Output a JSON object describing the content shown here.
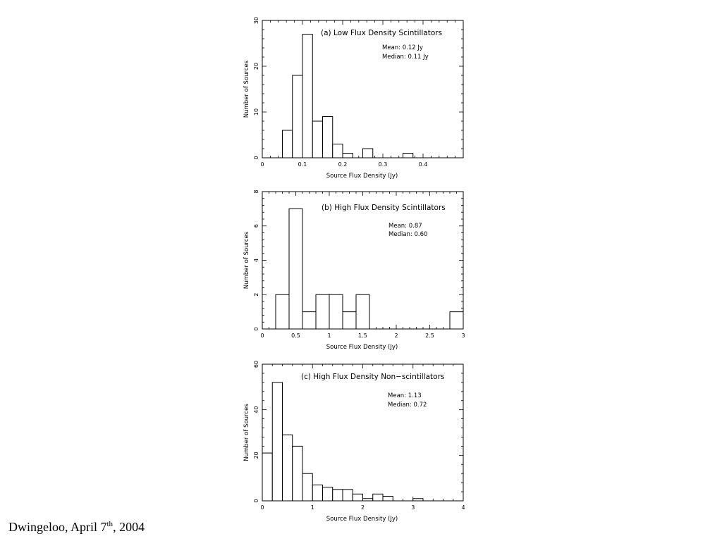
{
  "footer": {
    "text_before": "Dwingeloo, April 7",
    "superscript": "th",
    "text_after": ", 2004"
  },
  "chart_data": [
    {
      "type": "bar",
      "title": "(a) Low Flux Density Scintillators",
      "annotations": [
        "Mean: 0.12 Jy",
        "Median: 0.11 Jy"
      ],
      "xlabel": "Source Flux Density (Jy)",
      "ylabel": "Number of Sources",
      "xlim": [
        0,
        0.5
      ],
      "ylim": [
        0,
        30
      ],
      "xticks": [
        0,
        0.1,
        0.2,
        0.3,
        0.4
      ],
      "xtick_labels": [
        "0",
        "0.1",
        "0.2",
        "0.3",
        "0.4"
      ],
      "yticks": [
        0,
        10,
        20,
        30
      ],
      "ytick_labels": [
        "0",
        "10",
        "20",
        "30"
      ],
      "bin_width": 0.025,
      "bins": [
        {
          "x0": 0.05,
          "value": 6
        },
        {
          "x0": 0.075,
          "value": 18
        },
        {
          "x0": 0.1,
          "value": 27
        },
        {
          "x0": 0.125,
          "value": 8
        },
        {
          "x0": 0.15,
          "value": 9
        },
        {
          "x0": 0.175,
          "value": 3
        },
        {
          "x0": 0.2,
          "value": 1
        },
        {
          "x0": 0.25,
          "value": 2
        },
        {
          "x0": 0.35,
          "value": 1
        }
      ]
    },
    {
      "type": "bar",
      "title": "(b) High Flux Density Scintillators",
      "annotations": [
        "Mean: 0.87",
        "Median: 0.60"
      ],
      "xlabel": "Source Flux Density (Jy)",
      "ylabel": "Number of Sources",
      "xlim": [
        0,
        3
      ],
      "ylim": [
        0,
        8
      ],
      "xticks": [
        0,
        0.5,
        1,
        1.5,
        2,
        2.5,
        3
      ],
      "xtick_labels": [
        "0",
        "0.5",
        "1",
        "1.5",
        "2",
        "2.5",
        "3"
      ],
      "yticks": [
        0,
        2,
        4,
        6,
        8
      ],
      "ytick_labels": [
        "0",
        "2",
        "4",
        "6",
        "8"
      ],
      "bin_width": 0.2,
      "bins": [
        {
          "x0": 0.2,
          "value": 2
        },
        {
          "x0": 0.4,
          "value": 7
        },
        {
          "x0": 0.6,
          "value": 1
        },
        {
          "x0": 0.8,
          "value": 2
        },
        {
          "x0": 1.0,
          "value": 2
        },
        {
          "x0": 1.2,
          "value": 1
        },
        {
          "x0": 1.4,
          "value": 2
        },
        {
          "x0": 2.8,
          "value": 1
        }
      ]
    },
    {
      "type": "bar",
      "title": "(c) High Flux Density Non−scintillators",
      "annotations": [
        "Mean: 1.13",
        "Median: 0.72"
      ],
      "xlabel": "Source Flux Density (Jy)",
      "ylabel": "Number of Sources",
      "xlim": [
        0,
        4
      ],
      "ylim": [
        0,
        60
      ],
      "xticks": [
        0,
        1,
        2,
        3,
        4
      ],
      "xtick_labels": [
        "0",
        "1",
        "2",
        "3",
        "4"
      ],
      "yticks": [
        0,
        20,
        40,
        60
      ],
      "ytick_labels": [
        "0",
        "20",
        "40",
        "60"
      ],
      "bin_width": 0.2,
      "bins": [
        {
          "x0": 0.0,
          "value": 21
        },
        {
          "x0": 0.2,
          "value": 52
        },
        {
          "x0": 0.4,
          "value": 29
        },
        {
          "x0": 0.6,
          "value": 24
        },
        {
          "x0": 0.8,
          "value": 12
        },
        {
          "x0": 1.0,
          "value": 7
        },
        {
          "x0": 1.2,
          "value": 6
        },
        {
          "x0": 1.4,
          "value": 5
        },
        {
          "x0": 1.6,
          "value": 5
        },
        {
          "x0": 1.8,
          "value": 3
        },
        {
          "x0": 2.0,
          "value": 1
        },
        {
          "x0": 2.2,
          "value": 3
        },
        {
          "x0": 2.4,
          "value": 2
        },
        {
          "x0": 3.0,
          "value": 1
        }
      ]
    }
  ]
}
